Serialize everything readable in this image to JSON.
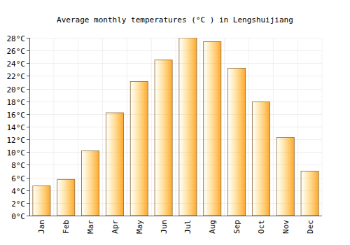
{
  "chart_data": {
    "type": "bar",
    "title": "Average monthly temperatures (°C ) in Lengshuijiang",
    "categories": [
      "Jan",
      "Feb",
      "Mar",
      "Apr",
      "May",
      "Jun",
      "Jul",
      "Aug",
      "Sep",
      "Oct",
      "Nov",
      "Dec"
    ],
    "values": [
      4.7,
      5.7,
      10.2,
      16.2,
      21.1,
      24.5,
      28.0,
      27.4,
      23.2,
      17.9,
      12.3,
      7.0
    ],
    "color": "#ffa62b",
    "ylim": [
      0,
      28
    ],
    "yticks": [
      {
        "value": 0,
        "label": "0°C"
      },
      {
        "value": 2,
        "label": "2°C"
      },
      {
        "value": 4,
        "label": "4°C"
      },
      {
        "value": 6,
        "label": "6°C"
      },
      {
        "value": 8,
        "label": "8°C"
      },
      {
        "value": 10,
        "label": "10°C"
      },
      {
        "value": 12,
        "label": "12°C"
      },
      {
        "value": 14,
        "label": "14°C"
      },
      {
        "value": 16,
        "label": "16°C"
      },
      {
        "value": 18,
        "label": "18°C"
      },
      {
        "value": 20,
        "label": "20°C"
      },
      {
        "value": 22,
        "label": "22°C"
      },
      {
        "value": 24,
        "label": "24°C"
      },
      {
        "value": 26,
        "label": "26°C"
      },
      {
        "value": 28,
        "label": "28°C"
      }
    ],
    "grid": true
  }
}
